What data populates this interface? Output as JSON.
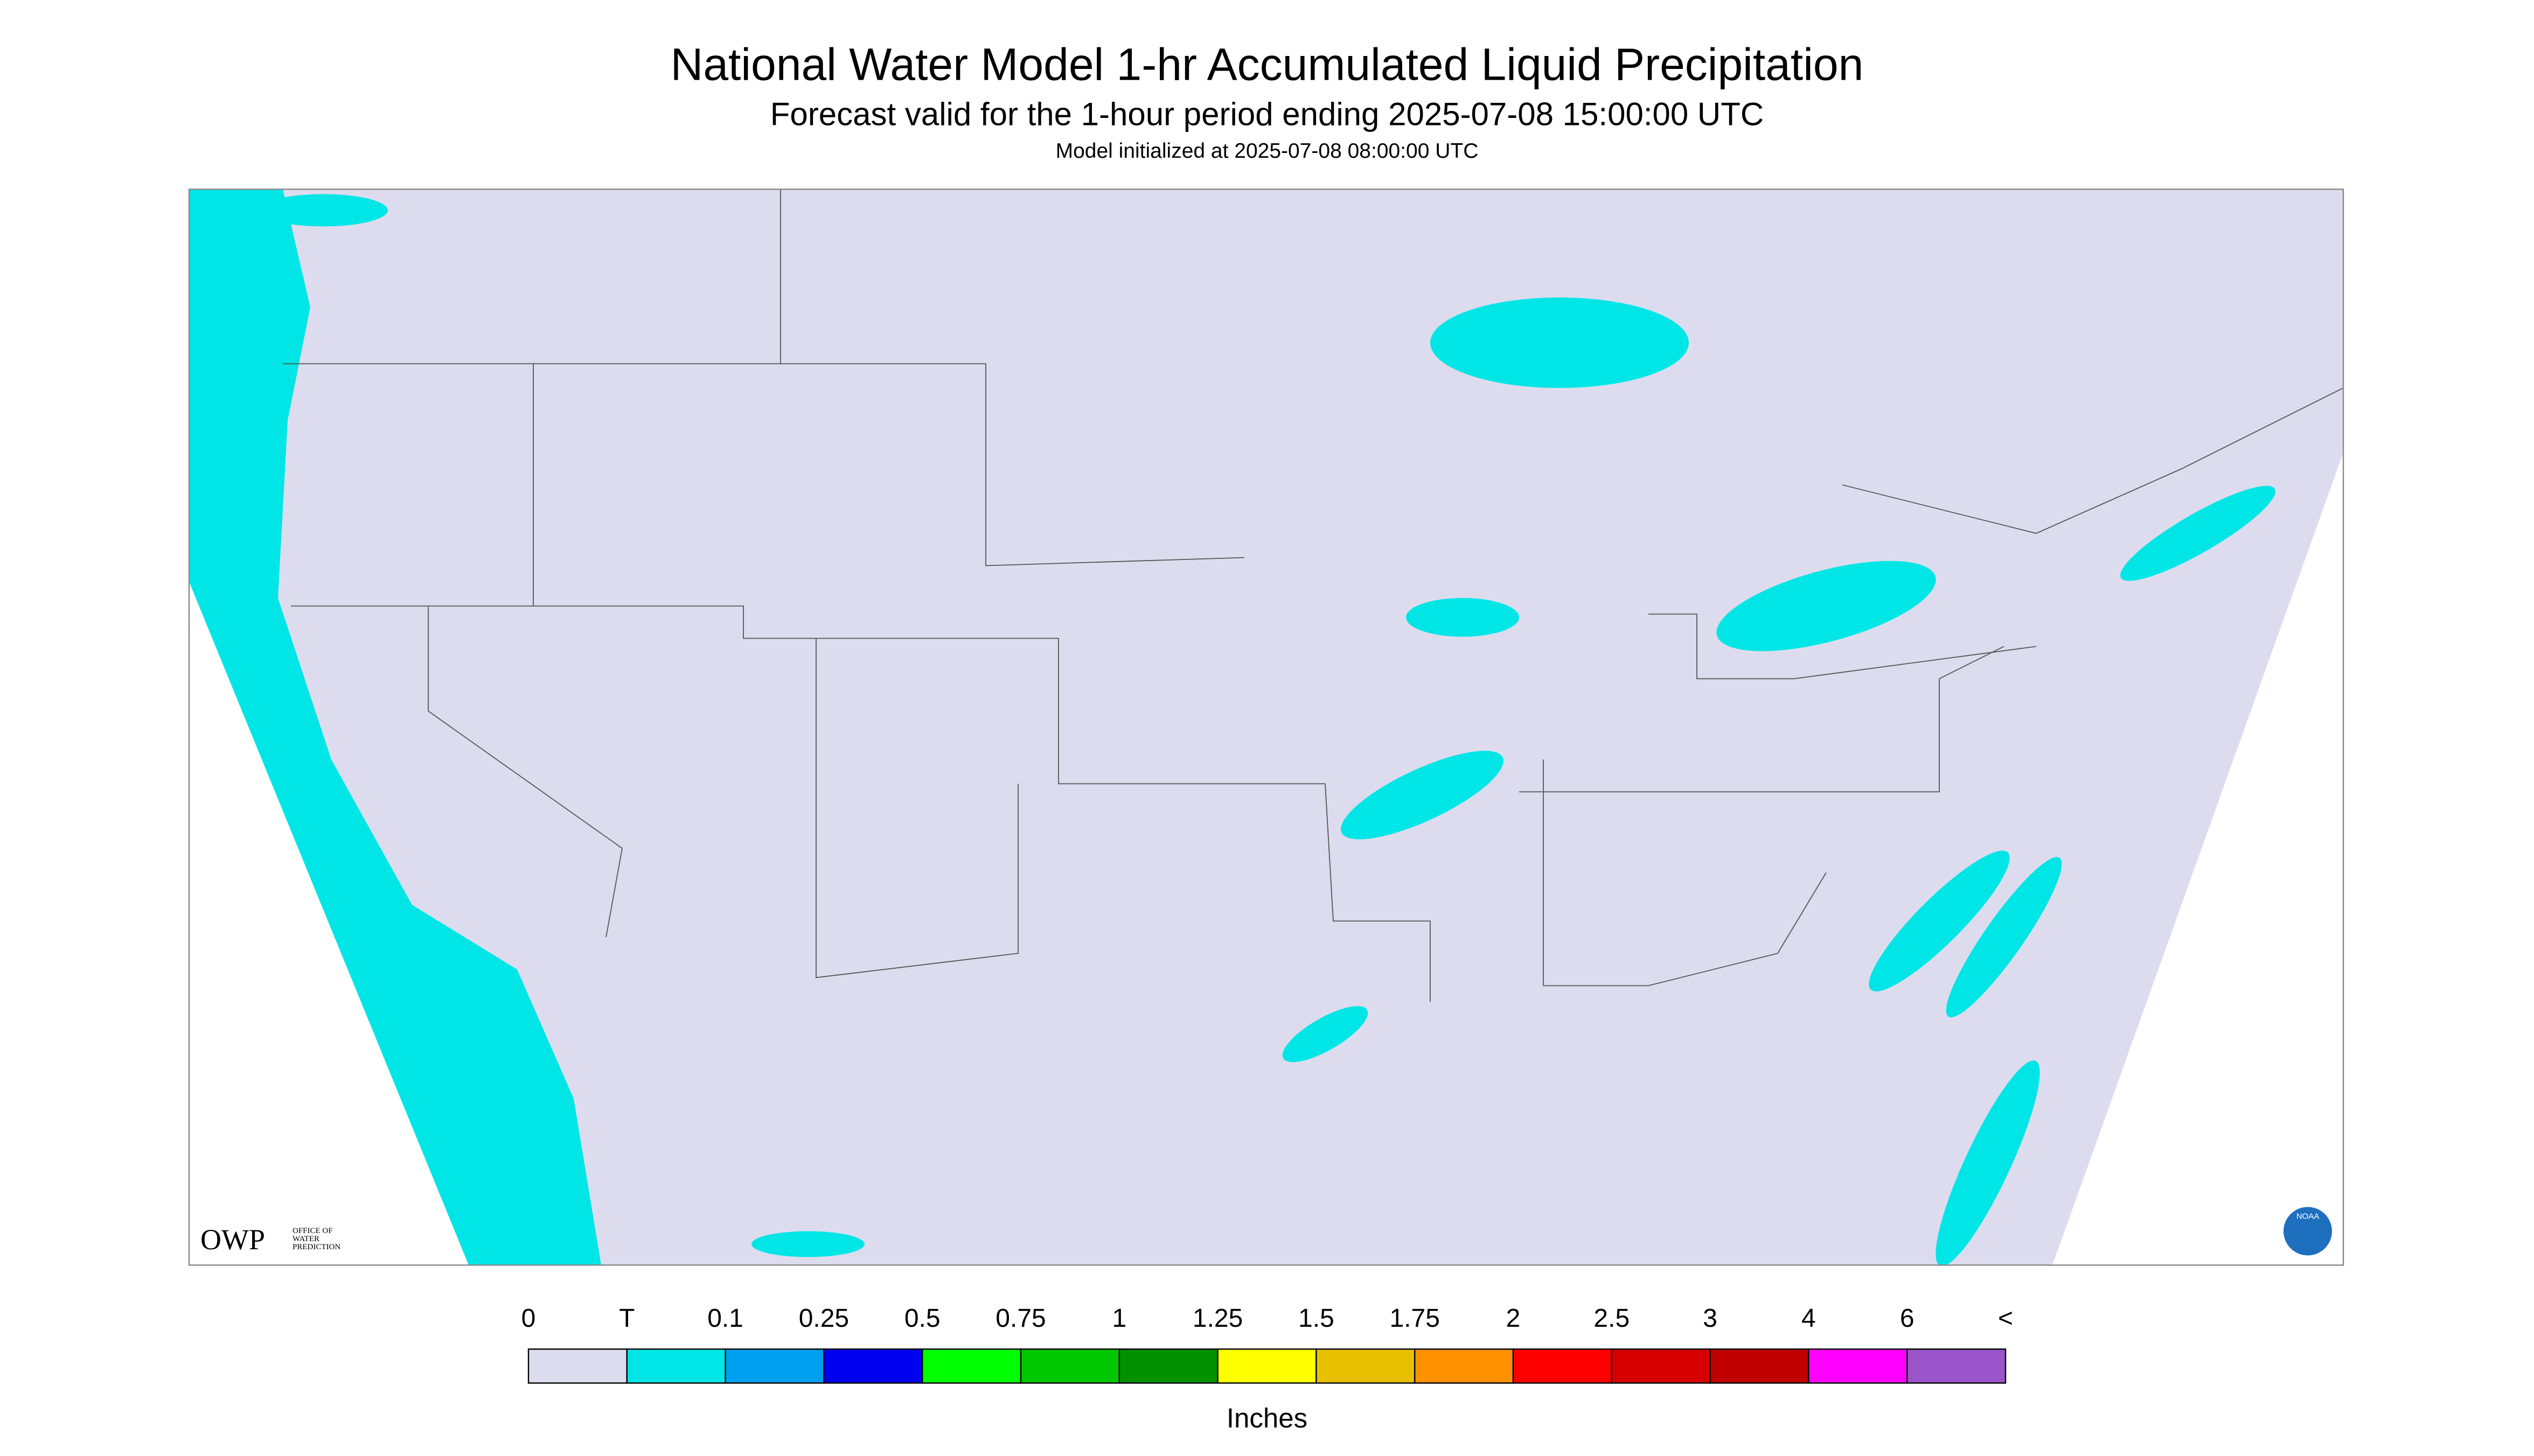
{
  "header": {
    "title": "National Water Model 1-hr Accumulated Liquid Precipitation",
    "subtitle": "Forecast valid for the 1-hour period ending 2025-07-08 15:00:00 UTC",
    "note": "Model initialized at 2025-07-08 08:00:00 UTC"
  },
  "legend": {
    "labels": [
      "0",
      "T",
      "0.1",
      "0.25",
      "0.5",
      "0.75",
      "1",
      "1.25",
      "1.5",
      "1.75",
      "2",
      "2.5",
      "3",
      "4",
      "6",
      "<"
    ],
    "colors": [
      "#dcdcee",
      "#00e6e6",
      "#00a0f0",
      "#0000f0",
      "#00ff00",
      "#00c800",
      "#009000",
      "#ffff00",
      "#e7c000",
      "#ff9000",
      "#ff0000",
      "#d60000",
      "#c00000",
      "#ff00ff",
      "#9955c9"
    ],
    "unit": "Inches"
  },
  "logo": {
    "initials": "OWP",
    "lines": [
      "OFFICE OF",
      "WATER",
      "PREDICTION"
    ]
  },
  "badge": "NOAA"
}
